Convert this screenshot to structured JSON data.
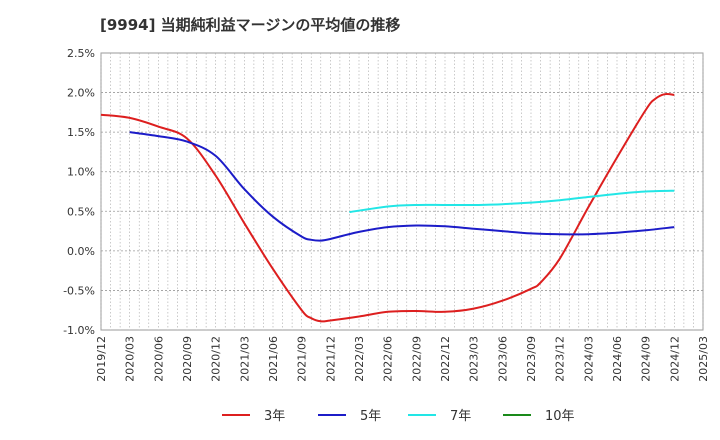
{
  "chart_data": {
    "type": "line",
    "title": "[9994]  当期純利益マージンの平均値の推移",
    "xlabel": "",
    "ylabel": "",
    "ylim": [
      -0.01,
      0.025
    ],
    "yticks": [
      {
        "value": 0.025,
        "label": "2.5%"
      },
      {
        "value": 0.02,
        "label": "2.0%"
      },
      {
        "value": 0.015,
        "label": "1.5%"
      },
      {
        "value": 0.01,
        "label": "1.0%"
      },
      {
        "value": 0.005,
        "label": "0.5%"
      },
      {
        "value": 0.0,
        "label": "0.0%"
      },
      {
        "value": -0.005,
        "label": "-0.5%"
      },
      {
        "value": -0.01,
        "label": "-1.0%"
      }
    ],
    "xticks": [
      "2019/12",
      "2020/03",
      "2020/06",
      "2020/09",
      "2020/12",
      "2021/03",
      "2021/06",
      "2021/09",
      "2021/12",
      "2022/03",
      "2022/06",
      "2022/09",
      "2022/12",
      "2023/03",
      "2023/06",
      "2023/09",
      "2023/12",
      "2024/03",
      "2024/06",
      "2024/09",
      "2024/12",
      "2025/03"
    ],
    "grid": true,
    "legend_position": "bottom",
    "series": [
      {
        "name": "3年",
        "color": "#dd1f1f",
        "points": [
          [
            "2019/12",
            0.0172
          ],
          [
            "2020/03",
            0.0168
          ],
          [
            "2020/06",
            0.0157
          ],
          [
            "2020/09",
            0.0142
          ],
          [
            "2020/12",
            0.0095
          ],
          [
            "2021/03",
            0.0035
          ],
          [
            "2021/06",
            -0.0023
          ],
          [
            "2021/09",
            -0.0075
          ],
          [
            "2021/10",
            -0.0085
          ],
          [
            "2021/11",
            -0.0089
          ],
          [
            "2021/12",
            -0.0088
          ],
          [
            "2022/03",
            -0.0083
          ],
          [
            "2022/06",
            -0.0077
          ],
          [
            "2022/09",
            -0.0076
          ],
          [
            "2022/12",
            -0.0077
          ],
          [
            "2023/03",
            -0.0073
          ],
          [
            "2023/06",
            -0.0063
          ],
          [
            "2023/09",
            -0.0048
          ],
          [
            "2023/10",
            -0.004
          ],
          [
            "2023/12",
            -0.001
          ],
          [
            "2024/03",
            0.0055
          ],
          [
            "2024/06",
            0.0118
          ],
          [
            "2024/09",
            0.0178
          ],
          [
            "2024/10",
            0.0192
          ],
          [
            "2024/11",
            0.0198
          ],
          [
            "2024/12",
            0.0197
          ]
        ]
      },
      {
        "name": "5年",
        "color": "#1c1cc8",
        "points": [
          [
            "2020/03",
            0.015
          ],
          [
            "2020/06",
            0.0145
          ],
          [
            "2020/09",
            0.0138
          ],
          [
            "2020/12",
            0.012
          ],
          [
            "2021/03",
            0.0078
          ],
          [
            "2021/06",
            0.0043
          ],
          [
            "2021/09",
            0.0018
          ],
          [
            "2021/10",
            0.0014
          ],
          [
            "2021/11",
            0.0013
          ],
          [
            "2021/12",
            0.0015
          ],
          [
            "2022/03",
            0.0024
          ],
          [
            "2022/06",
            0.003
          ],
          [
            "2022/09",
            0.0032
          ],
          [
            "2022/12",
            0.0031
          ],
          [
            "2023/03",
            0.0028
          ],
          [
            "2023/06",
            0.0025
          ],
          [
            "2023/09",
            0.0022
          ],
          [
            "2023/12",
            0.0021
          ],
          [
            "2024/03",
            0.0021
          ],
          [
            "2024/06",
            0.0023
          ],
          [
            "2024/09",
            0.0026
          ],
          [
            "2024/12",
            0.003
          ]
        ]
      },
      {
        "name": "7年",
        "color": "#22e6e6",
        "points": [
          [
            "2022/02",
            0.0049
          ],
          [
            "2022/06",
            0.0056
          ],
          [
            "2022/09",
            0.0058
          ],
          [
            "2022/12",
            0.0058
          ],
          [
            "2023/03",
            0.0058
          ],
          [
            "2023/06",
            0.0059
          ],
          [
            "2023/09",
            0.0061
          ],
          [
            "2023/12",
            0.0064
          ],
          [
            "2024/03",
            0.0068
          ],
          [
            "2024/06",
            0.0072
          ],
          [
            "2024/09",
            0.0075
          ],
          [
            "2024/12",
            0.0076
          ]
        ]
      },
      {
        "name": "10年",
        "color": "#1a8a1a",
        "points": []
      }
    ]
  }
}
